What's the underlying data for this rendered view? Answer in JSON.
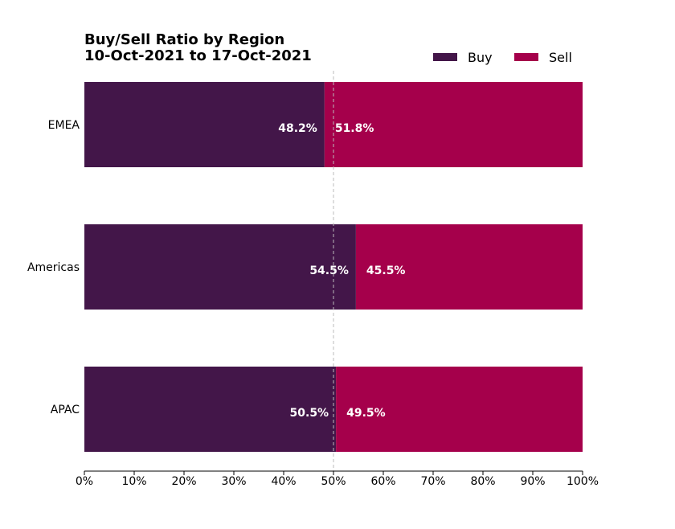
{
  "chart_data": {
    "type": "bar",
    "orientation": "horizontal",
    "stacked": true,
    "title": "Buy/Sell Ratio by Region",
    "subtitle": "10-Oct-2021 to 17-Oct-2021",
    "categories": [
      "EMEA",
      "Americas",
      "APAC"
    ],
    "series": [
      {
        "name": "Buy",
        "color": "#431649",
        "values": [
          48.2,
          54.5,
          50.5
        ],
        "labels": [
          "48.2%",
          "54.5%",
          "50.5%"
        ]
      },
      {
        "name": "Sell",
        "color": "#a5004b",
        "values": [
          51.8,
          45.5,
          49.5
        ],
        "labels": [
          "51.8%",
          "45.5%",
          "49.5%"
        ]
      }
    ],
    "xlim": [
      0,
      100
    ],
    "xticks": [
      0,
      10,
      20,
      30,
      40,
      50,
      60,
      70,
      80,
      90,
      100
    ],
    "xtick_labels": [
      "0%",
      "10%",
      "20%",
      "30%",
      "40%",
      "50%",
      "60%",
      "70%",
      "80%",
      "90%",
      "100%"
    ],
    "reference_line": {
      "x": 50,
      "style": "dashed",
      "color": "#bbbbbb"
    },
    "legend_position": "top-right",
    "grid": false
  }
}
